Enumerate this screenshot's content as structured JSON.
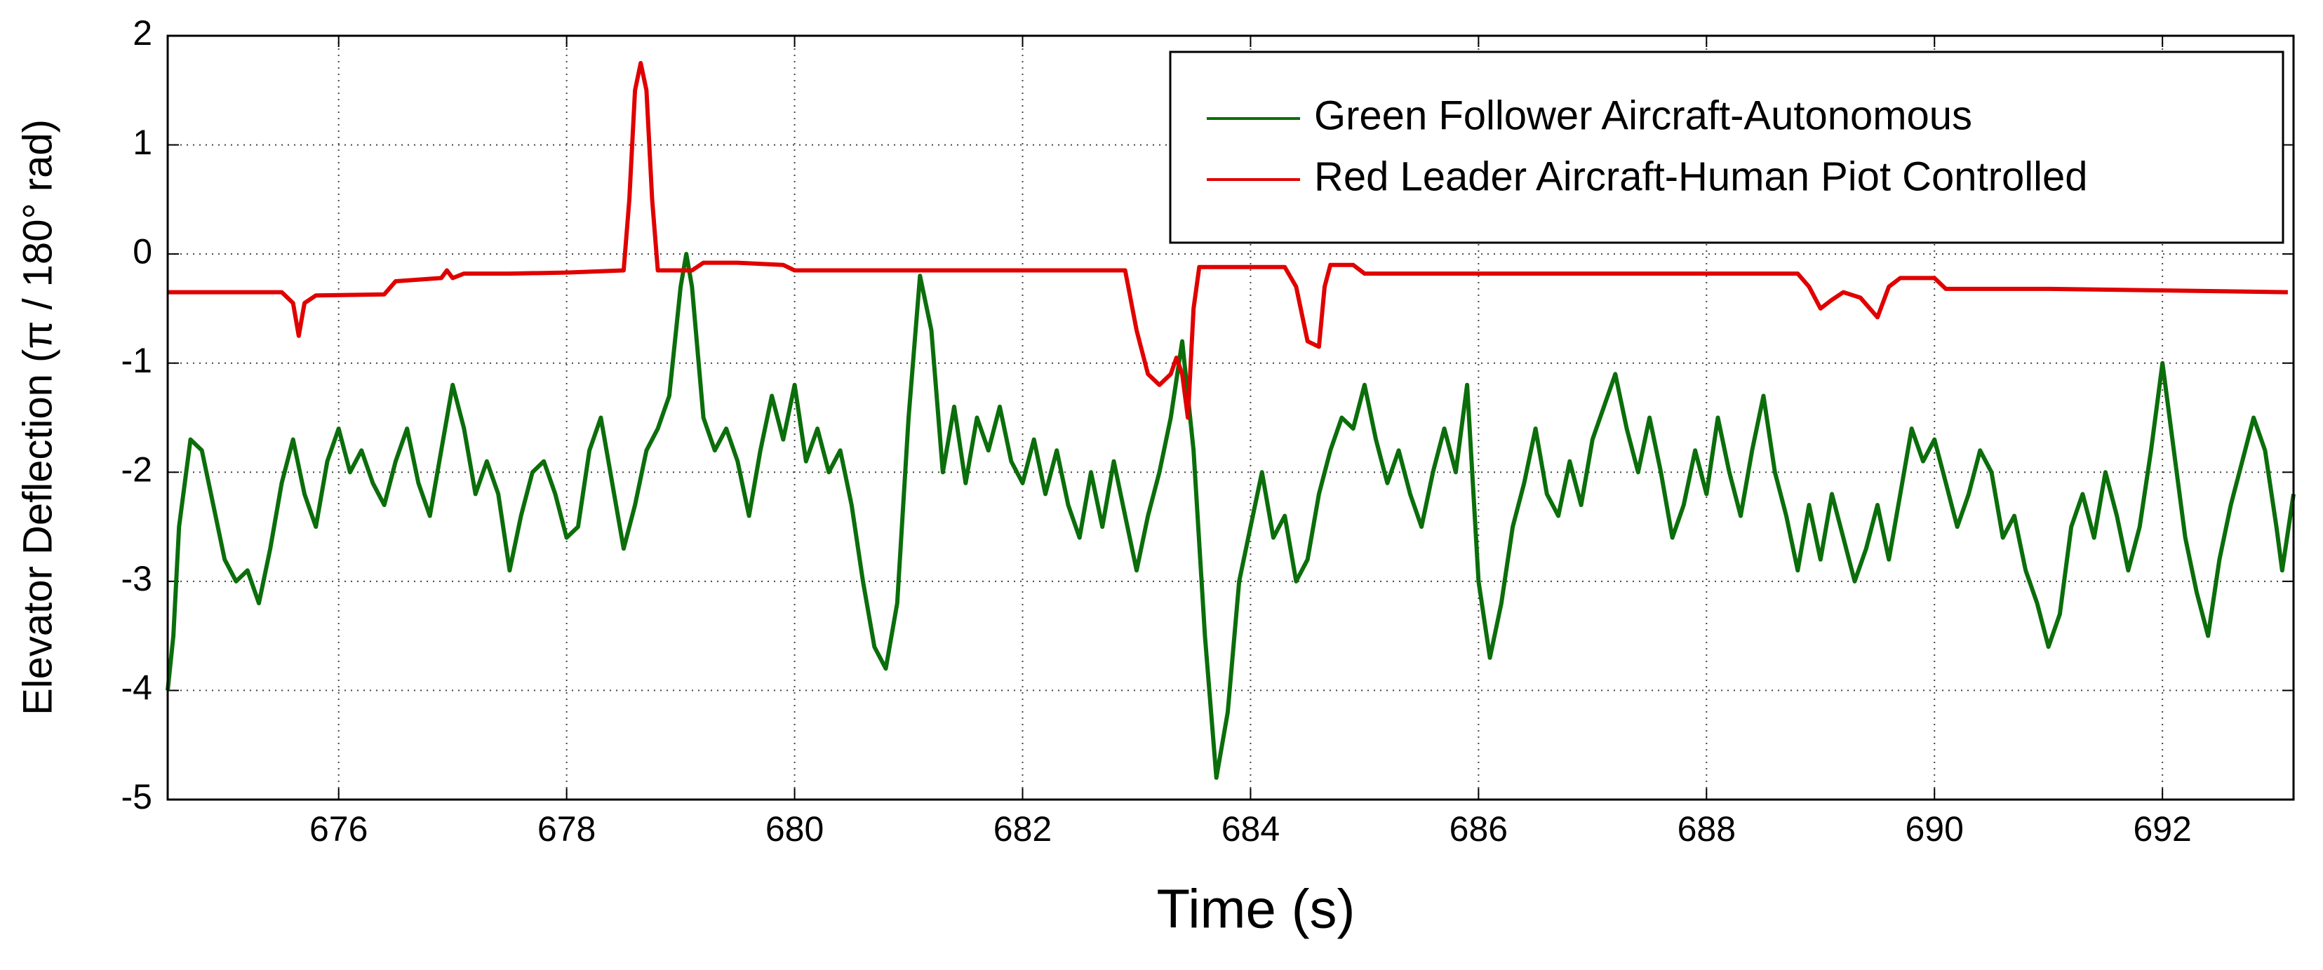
{
  "chart_data": {
    "type": "line",
    "xlabel": "Time (s)",
    "ylabel": "Elevator Deflection (π / 180° rad)",
    "xlim": [
      674.5,
      693.15
    ],
    "ylim": [
      -5,
      2
    ],
    "xticks": [
      676,
      678,
      680,
      682,
      684,
      686,
      688,
      690,
      692
    ],
    "yticks": [
      -5,
      -4,
      -3,
      -2,
      -1,
      0,
      1,
      2
    ],
    "grid": true,
    "legend": "upper right",
    "series": [
      {
        "name": "Green Follower Aircraft-Autonomous",
        "color": "#0b6e0b",
        "x": [
          674.5,
          674.55,
          674.6,
          674.7,
          674.8,
          674.9,
          675.0,
          675.1,
          675.2,
          675.3,
          675.4,
          675.5,
          675.6,
          675.7,
          675.8,
          675.9,
          676.0,
          676.1,
          676.2,
          676.3,
          676.4,
          676.5,
          676.6,
          676.7,
          676.8,
          676.9,
          677.0,
          677.1,
          677.2,
          677.3,
          677.4,
          677.5,
          677.6,
          677.7,
          677.8,
          677.9,
          678.0,
          678.1,
          678.2,
          678.3,
          678.4,
          678.5,
          678.6,
          678.7,
          678.8,
          678.9,
          679.0,
          679.05,
          679.1,
          679.2,
          679.3,
          679.4,
          679.5,
          679.6,
          679.7,
          679.8,
          679.9,
          680.0,
          680.1,
          680.2,
          680.3,
          680.4,
          680.5,
          680.6,
          680.7,
          680.8,
          680.9,
          681.0,
          681.1,
          681.2,
          681.3,
          681.4,
          681.5,
          681.6,
          681.7,
          681.8,
          681.9,
          682.0,
          682.1,
          682.2,
          682.3,
          682.4,
          682.5,
          682.6,
          682.7,
          682.8,
          682.9,
          683.0,
          683.1,
          683.2,
          683.3,
          683.4,
          683.5,
          683.6,
          683.7,
          683.8,
          683.9,
          684.0,
          684.1,
          684.2,
          684.3,
          684.4,
          684.5,
          684.6,
          684.7,
          684.8,
          684.9,
          685.0,
          685.1,
          685.2,
          685.3,
          685.4,
          685.5,
          685.6,
          685.7,
          685.8,
          685.9,
          686.0,
          686.1,
          686.2,
          686.3,
          686.4,
          686.5,
          686.6,
          686.7,
          686.8,
          686.9,
          687.0,
          687.1,
          687.2,
          687.3,
          687.4,
          687.5,
          687.6,
          687.7,
          687.8,
          687.9,
          688.0,
          688.1,
          688.2,
          688.3,
          688.4,
          688.5,
          688.6,
          688.7,
          688.8,
          688.9,
          689.0,
          689.1,
          689.2,
          689.3,
          689.4,
          689.5,
          689.6,
          689.7,
          689.8,
          689.9,
          690.0,
          690.1,
          690.2,
          690.3,
          690.4,
          690.5,
          690.6,
          690.7,
          690.8,
          690.9,
          691.0,
          691.1,
          691.2,
          691.3,
          691.4,
          691.5,
          691.6,
          691.7,
          691.8,
          691.9,
          692.0,
          692.1,
          692.2,
          692.3,
          692.4,
          692.5,
          692.6,
          692.7,
          692.8,
          692.9,
          693.0,
          693.05,
          693.15
        ],
        "values": [
          -4.0,
          -3.5,
          -2.5,
          -1.7,
          -1.8,
          -2.3,
          -2.8,
          -3.0,
          -2.9,
          -3.2,
          -2.7,
          -2.1,
          -1.7,
          -2.2,
          -2.5,
          -1.9,
          -1.6,
          -2.0,
          -1.8,
          -2.1,
          -2.3,
          -1.9,
          -1.6,
          -2.1,
          -2.4,
          -1.8,
          -1.2,
          -1.6,
          -2.2,
          -1.9,
          -2.2,
          -2.9,
          -2.4,
          -2.0,
          -1.9,
          -2.2,
          -2.6,
          -2.5,
          -1.8,
          -1.5,
          -2.1,
          -2.7,
          -2.3,
          -1.8,
          -1.6,
          -1.3,
          -0.3,
          0.0,
          -0.3,
          -1.5,
          -1.8,
          -1.6,
          -1.9,
          -2.4,
          -1.8,
          -1.3,
          -1.7,
          -1.2,
          -1.9,
          -1.6,
          -2.0,
          -1.8,
          -2.3,
          -3.0,
          -3.6,
          -3.8,
          -3.2,
          -1.5,
          -0.2,
          -0.7,
          -2.0,
          -1.4,
          -2.1,
          -1.5,
          -1.8,
          -1.4,
          -1.9,
          -2.1,
          -1.7,
          -2.2,
          -1.8,
          -2.3,
          -2.6,
          -2.0,
          -2.5,
          -1.9,
          -2.4,
          -2.9,
          -2.4,
          -2.0,
          -1.5,
          -0.8,
          -1.8,
          -3.5,
          -4.8,
          -4.2,
          -3.0,
          -2.5,
          -2.0,
          -2.6,
          -2.4,
          -3.0,
          -2.8,
          -2.2,
          -1.8,
          -1.5,
          -1.6,
          -1.2,
          -1.7,
          -2.1,
          -1.8,
          -2.2,
          -2.5,
          -2.0,
          -1.6,
          -2.0,
          -1.2,
          -3.0,
          -3.7,
          -3.2,
          -2.5,
          -2.1,
          -1.6,
          -2.2,
          -2.4,
          -1.9,
          -2.3,
          -1.7,
          -1.4,
          -1.1,
          -1.6,
          -2.0,
          -1.5,
          -2.0,
          -2.6,
          -2.3,
          -1.8,
          -2.2,
          -1.5,
          -2.0,
          -2.4,
          -1.8,
          -1.3,
          -2.0,
          -2.4,
          -2.9,
          -2.3,
          -2.8,
          -2.2,
          -2.6,
          -3.0,
          -2.7,
          -2.3,
          -2.8,
          -2.2,
          -1.6,
          -1.9,
          -1.7,
          -2.1,
          -2.5,
          -2.2,
          -1.8,
          -2.0,
          -2.6,
          -2.4,
          -2.9,
          -3.2,
          -3.6,
          -3.3,
          -2.5,
          -2.2,
          -2.6,
          -2.0,
          -2.4,
          -2.9,
          -2.5,
          -1.8,
          -1.0,
          -1.8,
          -2.6,
          -3.1,
          -3.5,
          -2.8,
          -2.3,
          -1.9,
          -1.5,
          -1.8,
          -2.5,
          -2.9,
          -2.2
        ]
      },
      {
        "name": "Red Leader Aircraft-Human Piot Controlled",
        "color": "#e00000",
        "x": [
          674.5,
          675.5,
          675.6,
          675.65,
          675.7,
          675.8,
          676.4,
          676.5,
          676.9,
          676.95,
          677.0,
          677.1,
          677.5,
          678.0,
          678.5,
          678.55,
          678.6,
          678.65,
          678.7,
          678.75,
          678.8,
          679.1,
          679.2,
          679.5,
          679.9,
          680.0,
          682.9,
          683.0,
          683.1,
          683.2,
          683.3,
          683.35,
          683.4,
          683.45,
          683.5,
          683.55,
          684.3,
          684.4,
          684.5,
          684.6,
          684.65,
          684.7,
          684.9,
          685.0,
          688.8,
          688.9,
          689.0,
          689.1,
          689.2,
          689.35,
          689.5,
          689.6,
          689.7,
          690.0,
          690.1,
          691.0,
          693.1
        ],
        "values": [
          -0.35,
          -0.35,
          -0.45,
          -0.75,
          -0.45,
          -0.38,
          -0.37,
          -0.25,
          -0.22,
          -0.15,
          -0.22,
          -0.18,
          -0.18,
          -0.17,
          -0.15,
          0.5,
          1.5,
          1.75,
          1.5,
          0.5,
          -0.15,
          -0.15,
          -0.08,
          -0.08,
          -0.1,
          -0.15,
          -0.15,
          -0.7,
          -1.1,
          -1.2,
          -1.1,
          -0.95,
          -1.1,
          -1.5,
          -0.5,
          -0.12,
          -0.12,
          -0.3,
          -0.8,
          -0.85,
          -0.3,
          -0.1,
          -0.1,
          -0.18,
          -0.18,
          -0.3,
          -0.5,
          -0.42,
          -0.35,
          -0.4,
          -0.58,
          -0.3,
          -0.22,
          -0.22,
          -0.32,
          -0.32,
          -0.35
        ]
      }
    ]
  }
}
